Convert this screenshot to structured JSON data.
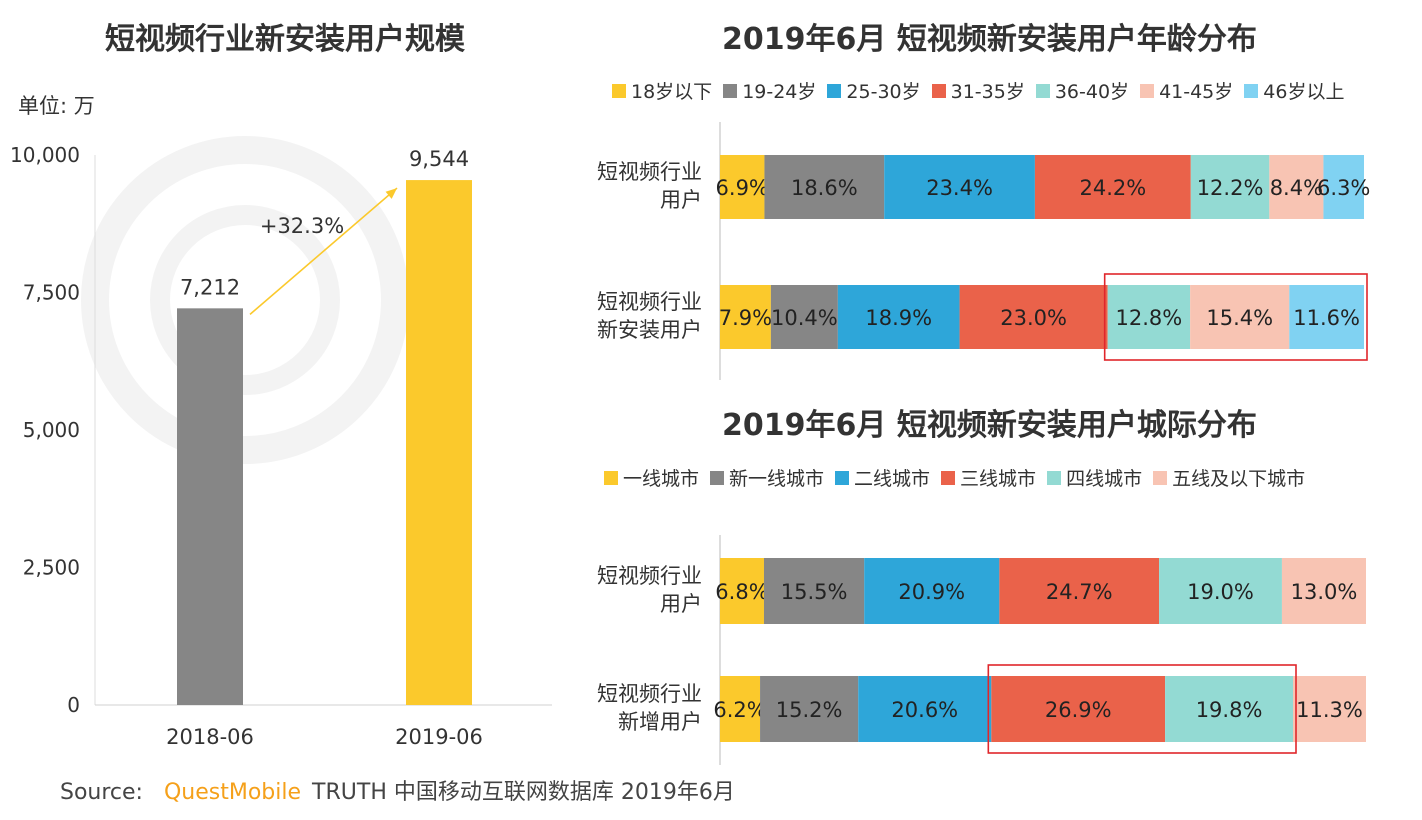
{
  "source": {
    "prefix": "Source:",
    "brand": "QuestMobile",
    "rest": "TRUTH 中国移动互联网数据库 2019年6月"
  },
  "chart_data": [
    {
      "type": "bar",
      "title": "短视频行业新安装用户规模",
      "unit": "单位: 万",
      "categories": [
        "2018-06",
        "2019-06"
      ],
      "values": [
        7212,
        9544
      ],
      "value_labels": [
        "7,212",
        "9,544"
      ],
      "colors": [
        "#868686",
        "#fbc92c"
      ],
      "ylim": [
        0,
        10000
      ],
      "yticks": [
        "0",
        "2,500",
        "5,000",
        "7,500",
        "10,000"
      ],
      "annotation": "+32.3%",
      "xlabel": "",
      "ylabel": ""
    },
    {
      "type": "bar",
      "stacked": "horizontal-100",
      "title": "2019年6月 短视频新安装用户年龄分布",
      "legend": [
        "18岁以下",
        "19-24岁",
        "25-30岁",
        "31-35岁",
        "36-40岁",
        "41-45岁",
        "46岁以上"
      ],
      "colors": [
        "#fbc92c",
        "#868686",
        "#2ea6d9",
        "#ea624a",
        "#93dad3",
        "#f8c4b3",
        "#80d2f2"
      ],
      "rows": [
        {
          "label": [
            "短视频行业",
            "用户"
          ],
          "values": [
            6.9,
            18.6,
            23.4,
            24.2,
            12.2,
            8.4,
            6.3
          ],
          "labels": [
            "6.9%",
            "18.6%",
            "23.4%",
            "24.2%",
            "12.2%",
            "8.4%",
            "6.3%"
          ]
        },
        {
          "label": [
            "短视频行业",
            "新安装用户"
          ],
          "values": [
            7.9,
            10.4,
            18.9,
            23.0,
            12.8,
            15.4,
            11.6
          ],
          "labels": [
            "7.9%",
            "10.4%",
            "18.9%",
            "23.0%",
            "12.8%",
            "15.4%",
            "11.6%"
          ]
        }
      ],
      "highlight": {
        "row": 1,
        "from_segment": 4,
        "to_segment": 6
      }
    },
    {
      "type": "bar",
      "stacked": "horizontal-100",
      "title": "2019年6月 短视频新安装用户城际分布",
      "legend": [
        "一线城市",
        "新一线城市",
        "二线城市",
        "三线城市",
        "四线城市",
        "五线及以下城市"
      ],
      "colors": [
        "#fbc92c",
        "#868686",
        "#2ea6d9",
        "#ea624a",
        "#93dad3",
        "#f8c4b3"
      ],
      "rows": [
        {
          "label": [
            "短视频行业",
            "用户"
          ],
          "values": [
            6.8,
            15.5,
            20.9,
            24.7,
            19.0,
            13.0
          ],
          "labels": [
            "6.8%",
            "15.5%",
            "20.9%",
            "24.7%",
            "19.0%",
            "13.0%"
          ]
        },
        {
          "label": [
            "短视频行业",
            "新增用户"
          ],
          "values": [
            6.2,
            15.2,
            20.6,
            26.9,
            19.8,
            11.3
          ],
          "labels": [
            "6.2%",
            "15.2%",
            "20.6%",
            "26.9%",
            "19.8%",
            "11.3%"
          ]
        }
      ],
      "highlight": {
        "row": 1,
        "from_segment": 3,
        "to_segment": 4
      }
    }
  ]
}
